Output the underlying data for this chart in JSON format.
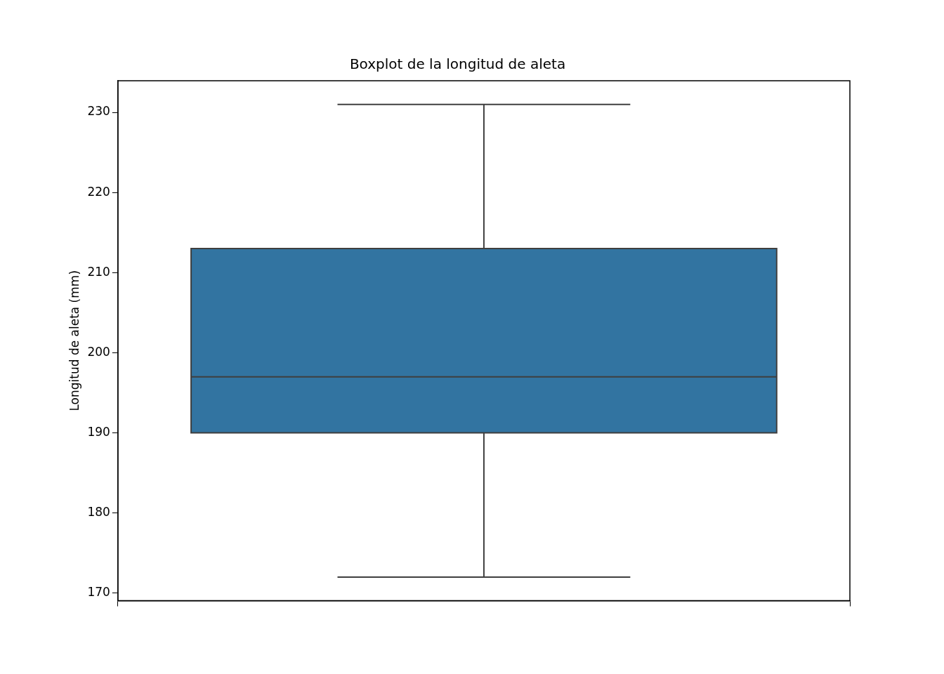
{
  "chart_data": {
    "type": "box",
    "title": "Boxplot de la longitud de aleta",
    "ylabel": "Longitud de aleta (mm)",
    "categories": [
      null
    ],
    "boxes": [
      {
        "low": 172,
        "q1": 190,
        "median": 197,
        "q3": 213,
        "high": 231
      }
    ],
    "color": "#3274a1",
    "ylim": [
      169.05,
      233.95
    ],
    "yticks": [
      170,
      180,
      190,
      200,
      210,
      220,
      230
    ]
  }
}
